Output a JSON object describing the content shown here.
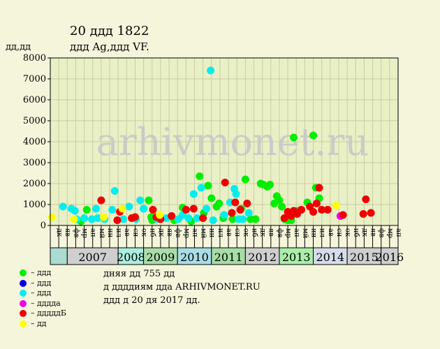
{
  "chart_data": {
    "type": "scatter",
    "title": "20 ддд 1822",
    "subtitle": "ддд Ag,ддд VF.",
    "ylabel": "дд,дд",
    "ylim": [
      0,
      8000
    ],
    "yticks": [
      0,
      1000,
      2000,
      3000,
      4000,
      5000,
      6000,
      7000,
      8000
    ],
    "watermark": "arhivmonet.ru",
    "grid": true,
    "years": [
      {
        "label": "2007",
        "start": 0,
        "end": 6,
        "color": "#cfcfcf"
      },
      {
        "label": "2008",
        "start": 6,
        "end": 9,
        "color": "#aaeedd"
      },
      {
        "label": "2009",
        "start": 9,
        "end": 13,
        "color": "#aaddaa"
      },
      {
        "label": "2010",
        "start": 13,
        "end": 17,
        "color": "#aadde6"
      },
      {
        "label": "2011",
        "start": 17,
        "end": 21,
        "color": "#a6dca6"
      },
      {
        "label": "2012",
        "start": 21,
        "end": 25,
        "color": "#cfcfcf"
      },
      {
        "label": "2013",
        "start": 25,
        "end": 29,
        "color": "#aaeeaa"
      },
      {
        "label": "2014",
        "start": 29,
        "end": 33,
        "color": "#d6dcea"
      },
      {
        "label": "2015",
        "start": 33,
        "end": 37,
        "color": "#cfcfcf"
      },
      {
        "label": "2016",
        "start": 37,
        "end": 41,
        "color": "#cfcfcf"
      }
    ],
    "first_month_band": {
      "label": "",
      "color": "#aadcd2"
    },
    "month_labels": [
      "дк",
      "яв",
      "фв",
      "мр",
      "ап",
      "мй",
      "ин",
      "ил",
      "ав",
      "сн",
      "ок",
      "нб",
      "дк",
      "яв",
      "фв",
      "мр",
      "ап",
      "мй",
      "ин",
      "ил",
      "ав",
      "сн",
      "ок",
      "нб",
      "дк",
      "яв",
      "фв",
      "мр",
      "ап",
      "мй",
      "ин",
      "ил",
      "ав",
      "сн",
      "ок",
      "нб",
      "дк",
      "яв",
      "фв",
      "мр",
      "ап"
    ],
    "series": [
      {
        "name": "ддд",
        "color": "#00ee00",
        "points": [
          [
            3.6,
            200
          ],
          [
            4.3,
            750
          ],
          [
            11.6,
            1200
          ],
          [
            11.9,
            400
          ],
          [
            12.0,
            250
          ],
          [
            14.6,
            250
          ],
          [
            15.6,
            850
          ],
          [
            16.6,
            200
          ],
          [
            17.6,
            2350
          ],
          [
            18.1,
            600
          ],
          [
            18.6,
            1900
          ],
          [
            19.0,
            1300
          ],
          [
            19.6,
            900
          ],
          [
            19.9,
            1050
          ],
          [
            20.4,
            350
          ],
          [
            21.5,
            300
          ],
          [
            22.5,
            800
          ],
          [
            23.0,
            2200
          ],
          [
            23.6,
            300
          ],
          [
            24.2,
            300
          ],
          [
            24.8,
            2000
          ],
          [
            25.1,
            1950
          ],
          [
            25.6,
            1850
          ],
          [
            25.9,
            1950
          ],
          [
            26.4,
            1050
          ],
          [
            26.7,
            1400
          ],
          [
            27.0,
            1200
          ],
          [
            27.3,
            900
          ],
          [
            27.6,
            300
          ],
          [
            28.0,
            250
          ],
          [
            28.4,
            250
          ],
          [
            28.7,
            4200
          ],
          [
            29.2,
            700
          ],
          [
            30.3,
            1100
          ],
          [
            31.0,
            4300
          ],
          [
            31.3,
            1800
          ],
          [
            31.7,
            1300
          ]
        ]
      },
      {
        "name": "ддд",
        "color": "#0000ee",
        "points": []
      },
      {
        "name": "ддд",
        "color": "#00eeee",
        "points": [
          [
            1.5,
            900
          ],
          [
            2.5,
            800
          ],
          [
            2.9,
            700
          ],
          [
            3.1,
            300
          ],
          [
            4.0,
            350
          ],
          [
            4.9,
            300
          ],
          [
            5.4,
            800
          ],
          [
            5.6,
            350
          ],
          [
            6.4,
            300
          ],
          [
            7.3,
            750
          ],
          [
            7.6,
            1650
          ],
          [
            8.6,
            300
          ],
          [
            9.3,
            900
          ],
          [
            10.1,
            300
          ],
          [
            10.6,
            1200
          ],
          [
            11.0,
            800
          ],
          [
            12.6,
            300
          ],
          [
            13.7,
            350
          ],
          [
            15.1,
            300
          ],
          [
            15.6,
            500
          ],
          [
            16.3,
            350
          ],
          [
            16.9,
            1500
          ],
          [
            17.3,
            350
          ],
          [
            17.8,
            1800
          ],
          [
            18.4,
            800
          ],
          [
            18.9,
            7400
          ],
          [
            19.2,
            250
          ],
          [
            20.5,
            500
          ],
          [
            21.2,
            1100
          ],
          [
            21.7,
            1750
          ],
          [
            21.9,
            1500
          ],
          [
            22.2,
            300
          ],
          [
            22.7,
            300
          ],
          [
            23.4,
            600
          ]
        ]
      },
      {
        "name": "дддда",
        "color": "#ee00ee",
        "points": [
          [
            34.2,
            450
          ]
        ]
      },
      {
        "name": "дддддБ",
        "color": "#ee0000",
        "points": [
          [
            6.0,
            1200
          ],
          [
            7.9,
            250
          ],
          [
            8.2,
            650
          ],
          [
            9.6,
            350
          ],
          [
            10.0,
            400
          ],
          [
            12.1,
            750
          ],
          [
            12.5,
            400
          ],
          [
            13.0,
            300
          ],
          [
            14.3,
            450
          ],
          [
            16.0,
            750
          ],
          [
            16.9,
            800
          ],
          [
            18.0,
            350
          ],
          [
            20.6,
            2050
          ],
          [
            21.4,
            600
          ],
          [
            21.8,
            1100
          ],
          [
            22.4,
            750
          ],
          [
            23.2,
            1050
          ],
          [
            27.6,
            350
          ],
          [
            28.0,
            650
          ],
          [
            28.4,
            450
          ],
          [
            28.7,
            700
          ],
          [
            29.1,
            550
          ],
          [
            29.6,
            750
          ],
          [
            30.6,
            900
          ],
          [
            31.0,
            650
          ],
          [
            31.4,
            1050
          ],
          [
            31.7,
            1800
          ],
          [
            32.0,
            750
          ],
          [
            32.7,
            750
          ],
          [
            34.5,
            500
          ],
          [
            36.9,
            550
          ],
          [
            37.2,
            1250
          ],
          [
            37.8,
            600
          ]
        ]
      },
      {
        "name": "дд",
        "color": "#ffff00",
        "points": [
          [
            0.2,
            400
          ],
          [
            2.8,
            300
          ],
          [
            6.3,
            400
          ],
          [
            8.5,
            800
          ],
          [
            12.9,
            500
          ],
          [
            33.7,
            950
          ]
        ]
      }
    ]
  },
  "notes": [
    "дняя дд 755 дд",
    "д ддддиям дда ARHIVMONET.RU",
    "ддд д 20 дя 2017 дд."
  ]
}
